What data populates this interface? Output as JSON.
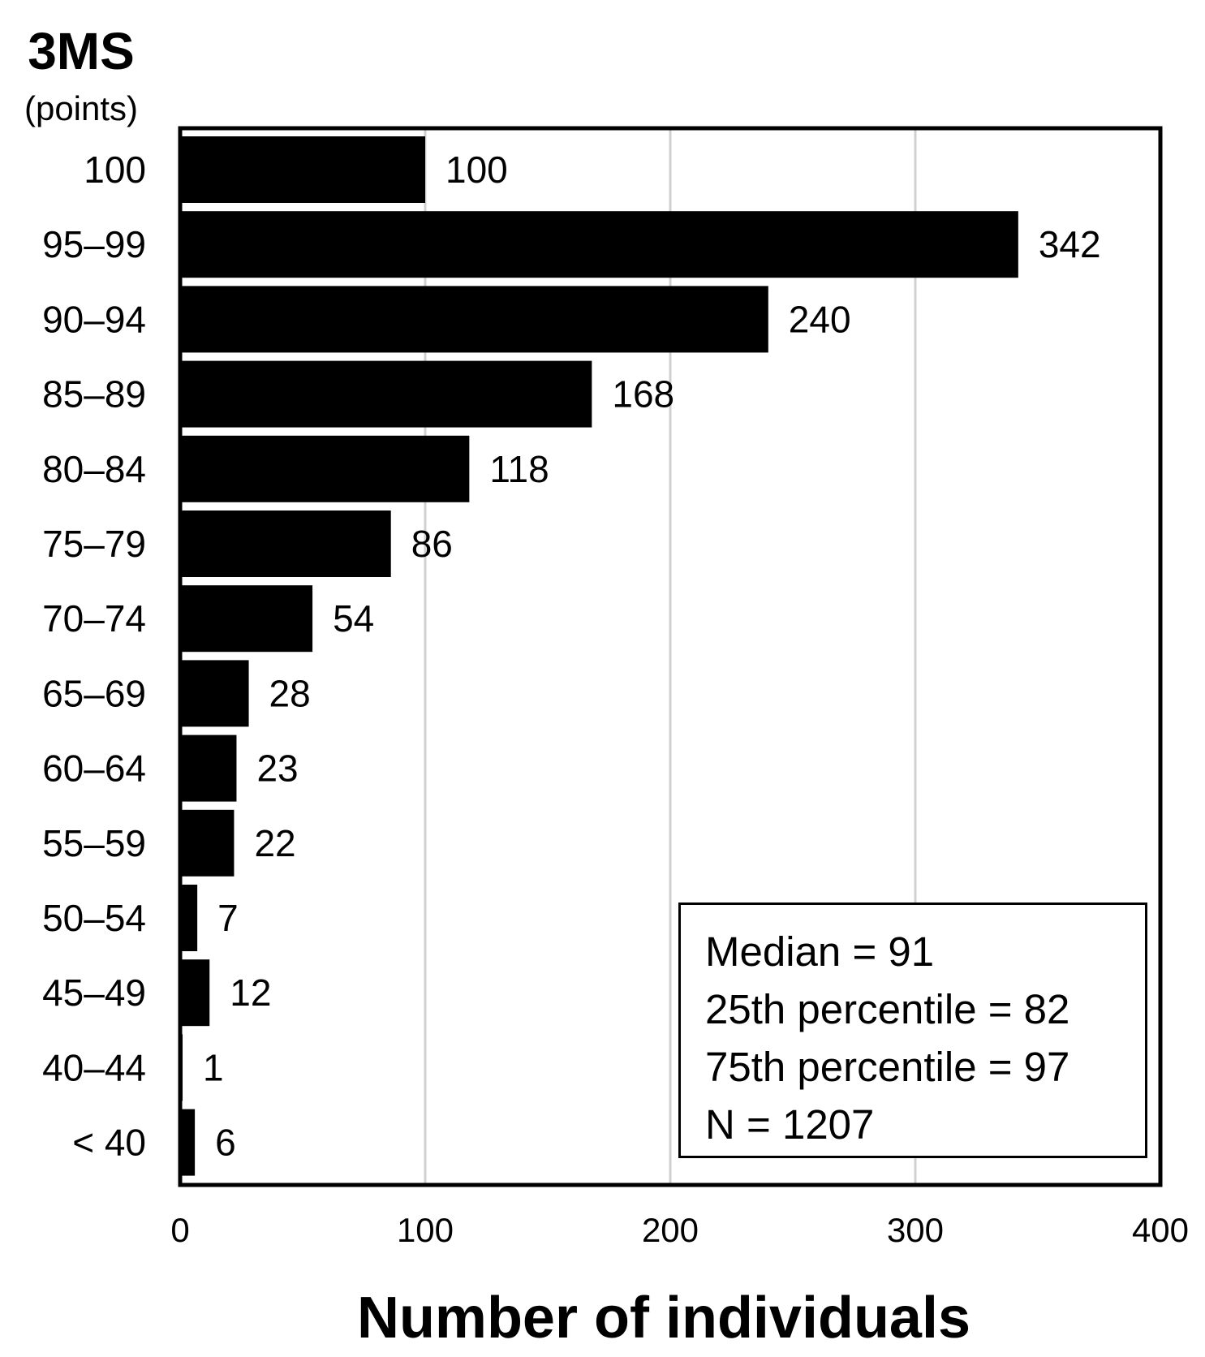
{
  "chart_data": {
    "type": "bar",
    "orientation": "horizontal",
    "title": "3MS",
    "subtitle": "(points)",
    "xlabel": "Number of individuals",
    "ylabel": "",
    "xlim": [
      0,
      400
    ],
    "x_ticks": [
      "0",
      "100",
      "200",
      "300",
      "400"
    ],
    "grid": "vertical",
    "categories": [
      "100",
      "95–99",
      "90–94",
      "85–89",
      "80–84",
      "75–79",
      "70–74",
      "65–69",
      "60–64",
      "55–59",
      "50–54",
      "45–49",
      "40–44",
      "< 40"
    ],
    "values": [
      100,
      342,
      240,
      168,
      118,
      86,
      54,
      28,
      23,
      22,
      7,
      12,
      1,
      6
    ],
    "bar_color": "#000000",
    "grid_color": "#d0d0d0"
  },
  "stats": {
    "median": "Median = 91",
    "p25": "25th percentile = 82",
    "p75": "75th percentile = 97",
    "n": "N = 1207"
  }
}
